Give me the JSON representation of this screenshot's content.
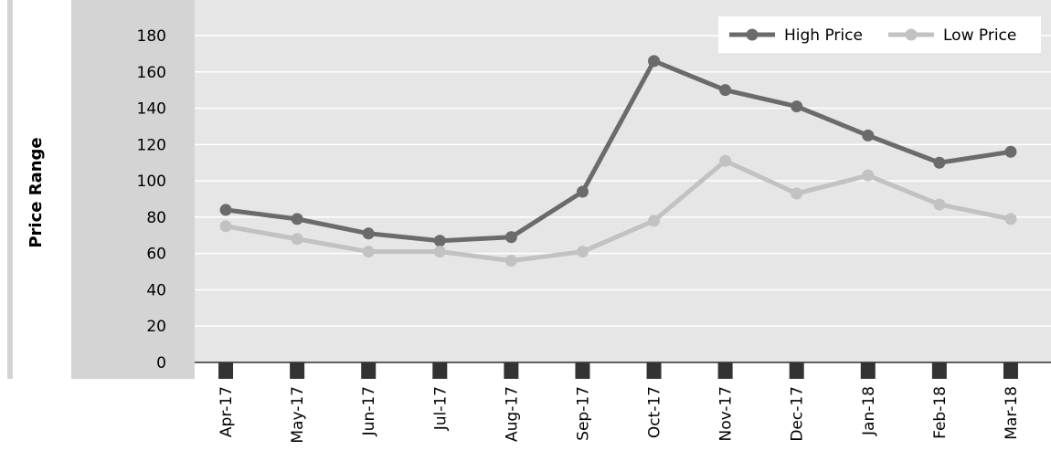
{
  "chart_data": {
    "type": "line",
    "title": "",
    "xlabel": "",
    "ylabel": "Price Range",
    "ylim": [
      0,
      180
    ],
    "yticks": [
      0,
      20,
      40,
      60,
      80,
      100,
      120,
      140,
      160,
      180
    ],
    "grid": true,
    "legend_position": "top-right",
    "categories": [
      "Apr-17",
      "May-17",
      "Jun-17",
      "Jul-17",
      "Aug-17",
      "Sep-17",
      "Oct-17",
      "Nov-17",
      "Dec-17",
      "Jan-18",
      "Feb-18",
      "Mar-18"
    ],
    "series": [
      {
        "name": "High Price",
        "color": "#6b6b6b",
        "values": [
          84,
          79,
          71,
          67,
          69,
          94,
          166,
          150,
          141,
          125,
          110,
          116
        ]
      },
      {
        "name": "Low Price",
        "color": "#c2c2c2",
        "values": [
          75,
          68,
          61,
          61,
          56,
          61,
          78,
          111,
          93,
          103,
          87,
          79
        ]
      }
    ]
  },
  "colors": {
    "plot_background": "#e6e6e6",
    "axis_band": "#d4d4d4",
    "gridline": "#ffffff",
    "axis_line": "#333333",
    "category_marker": "#333333"
  }
}
